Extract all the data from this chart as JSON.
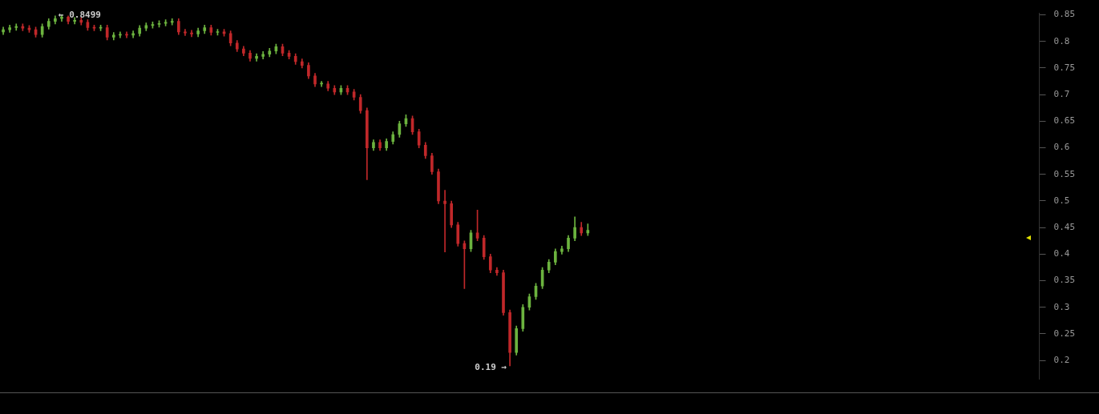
{
  "chart_data": {
    "type": "candlestick",
    "categories": [
      null,
      null,
      null,
      null,
      null,
      null,
      null,
      null,
      null,
      null,
      null,
      null,
      null,
      null,
      null,
      null,
      null,
      null,
      null,
      null,
      null,
      null,
      null,
      null,
      null,
      null,
      null,
      null,
      null,
      null,
      null,
      null,
      null,
      null,
      null,
      null,
      null,
      null,
      null,
      null,
      null,
      null,
      null,
      null,
      null,
      null,
      null,
      null,
      null,
      null,
      null,
      null,
      null,
      null,
      null,
      null,
      null,
      null,
      null,
      null,
      null,
      null,
      null,
      null,
      null,
      null,
      null,
      null,
      null,
      null,
      null,
      null,
      null,
      null,
      null,
      null,
      null,
      null,
      null,
      null,
      null,
      null,
      null,
      null,
      null,
      null,
      null,
      null,
      null,
      null,
      null,
      null,
      null,
      null,
      null,
      null,
      null,
      null,
      null,
      null,
      null,
      null,
      null,
      null,
      null,
      null,
      null,
      null,
      null,
      null,
      null,
      null,
      null,
      null,
      null,
      null,
      null,
      null,
      null,
      null,
      null,
      null,
      null,
      null,
      null,
      null,
      null,
      null,
      null,
      null,
      null,
      null,
      null,
      null,
      null,
      null,
      null,
      null,
      null,
      null,
      null,
      null,
      null,
      null,
      null,
      null,
      null,
      null,
      null,
      null,
      null,
      null,
      null,
      null,
      null,
      null,
      null,
      null,
      null,
      null
    ],
    "ohlc": [
      [
        0.818,
        0.827,
        0.813,
        0.822
      ],
      [
        0.822,
        0.831,
        0.817,
        0.826
      ],
      [
        0.826,
        0.833,
        0.821,
        0.828
      ],
      [
        0.828,
        0.833,
        0.82,
        0.825
      ],
      [
        0.825,
        0.83,
        0.817,
        0.822
      ],
      [
        0.822,
        0.827,
        0.808,
        0.813
      ],
      [
        0.813,
        0.833,
        0.808,
        0.828
      ],
      [
        0.828,
        0.843,
        0.823,
        0.838
      ],
      [
        0.838,
        0.848,
        0.833,
        0.843
      ],
      [
        0.843,
        0.8499,
        0.838,
        0.846
      ],
      [
        0.846,
        0.848,
        0.833,
        0.838
      ],
      [
        0.838,
        0.845,
        0.833,
        0.84
      ],
      [
        0.84,
        0.845,
        0.831,
        0.836
      ],
      [
        0.836,
        0.841,
        0.821,
        0.826
      ],
      [
        0.826,
        0.831,
        0.82,
        0.825
      ],
      [
        0.825,
        0.831,
        0.82,
        0.826
      ],
      [
        0.826,
        0.831,
        0.803,
        0.808
      ],
      [
        0.808,
        0.817,
        0.803,
        0.812
      ],
      [
        0.812,
        0.818,
        0.807,
        0.813
      ],
      [
        0.813,
        0.818,
        0.807,
        0.812
      ],
      [
        0.812,
        0.82,
        0.807,
        0.815
      ],
      [
        0.815,
        0.83,
        0.81,
        0.825
      ],
      [
        0.825,
        0.835,
        0.82,
        0.83
      ],
      [
        0.83,
        0.837,
        0.825,
        0.832
      ],
      [
        0.832,
        0.839,
        0.827,
        0.834
      ],
      [
        0.834,
        0.841,
        0.829,
        0.836
      ],
      [
        0.836,
        0.843,
        0.831,
        0.838
      ],
      [
        0.838,
        0.843,
        0.813,
        0.818
      ],
      [
        0.818,
        0.823,
        0.811,
        0.816
      ],
      [
        0.816,
        0.821,
        0.809,
        0.814
      ],
      [
        0.814,
        0.825,
        0.809,
        0.82
      ],
      [
        0.82,
        0.831,
        0.815,
        0.826
      ],
      [
        0.826,
        0.831,
        0.812,
        0.817
      ],
      [
        0.817,
        0.823,
        0.812,
        0.818
      ],
      [
        0.818,
        0.823,
        0.81,
        0.815
      ],
      [
        0.815,
        0.82,
        0.792,
        0.797
      ],
      [
        0.797,
        0.802,
        0.781,
        0.786
      ],
      [
        0.786,
        0.791,
        0.773,
        0.778
      ],
      [
        0.778,
        0.783,
        0.763,
        0.768
      ],
      [
        0.768,
        0.777,
        0.763,
        0.772
      ],
      [
        0.772,
        0.781,
        0.767,
        0.776
      ],
      [
        0.776,
        0.787,
        0.771,
        0.782
      ],
      [
        0.782,
        0.795,
        0.777,
        0.79
      ],
      [
        0.79,
        0.795,
        0.773,
        0.778
      ],
      [
        0.778,
        0.783,
        0.767,
        0.772
      ],
      [
        0.772,
        0.777,
        0.757,
        0.762
      ],
      [
        0.762,
        0.767,
        0.75,
        0.755
      ],
      [
        0.755,
        0.76,
        0.73,
        0.735
      ],
      [
        0.735,
        0.74,
        0.715,
        0.72
      ],
      [
        0.72,
        0.725,
        0.715,
        0.72
      ],
      [
        0.72,
        0.725,
        0.707,
        0.712
      ],
      [
        0.712,
        0.717,
        0.7,
        0.705
      ],
      [
        0.705,
        0.717,
        0.7,
        0.712
      ],
      [
        0.712,
        0.717,
        0.7,
        0.705
      ],
      [
        0.705,
        0.71,
        0.69,
        0.695
      ],
      [
        0.695,
        0.7,
        0.665,
        0.67
      ],
      [
        0.67,
        0.675,
        0.54,
        0.6
      ],
      [
        0.6,
        0.615,
        0.595,
        0.61
      ],
      [
        0.61,
        0.615,
        0.595,
        0.6
      ],
      [
        0.6,
        0.617,
        0.595,
        0.612
      ],
      [
        0.612,
        0.63,
        0.607,
        0.625
      ],
      [
        0.625,
        0.65,
        0.62,
        0.645
      ],
      [
        0.645,
        0.662,
        0.64,
        0.655
      ],
      [
        0.655,
        0.66,
        0.625,
        0.63
      ],
      [
        0.63,
        0.635,
        0.6,
        0.605
      ],
      [
        0.605,
        0.61,
        0.58,
        0.585
      ],
      [
        0.585,
        0.59,
        0.55,
        0.555
      ],
      [
        0.555,
        0.56,
        0.495,
        0.5
      ],
      [
        0.5,
        0.52,
        0.404,
        0.495
      ],
      [
        0.495,
        0.5,
        0.45,
        0.455
      ],
      [
        0.455,
        0.46,
        0.415,
        0.42
      ],
      [
        0.42,
        0.425,
        0.335,
        0.41
      ],
      [
        0.41,
        0.445,
        0.405,
        0.44
      ],
      [
        0.44,
        0.483,
        0.425,
        0.43
      ],
      [
        0.43,
        0.435,
        0.39,
        0.395
      ],
      [
        0.395,
        0.4,
        0.365,
        0.37
      ],
      [
        0.37,
        0.375,
        0.36,
        0.365
      ],
      [
        0.365,
        0.37,
        0.285,
        0.29
      ],
      [
        0.29,
        0.295,
        0.19,
        0.215
      ],
      [
        0.215,
        0.265,
        0.21,
        0.26
      ],
      [
        0.26,
        0.305,
        0.255,
        0.3
      ],
      [
        0.3,
        0.325,
        0.295,
        0.32
      ],
      [
        0.32,
        0.345,
        0.315,
        0.34
      ],
      [
        0.34,
        0.375,
        0.335,
        0.37
      ],
      [
        0.37,
        0.39,
        0.365,
        0.385
      ],
      [
        0.385,
        0.41,
        0.38,
        0.405
      ],
      [
        0.405,
        0.415,
        0.4,
        0.41
      ],
      [
        0.41,
        0.435,
        0.405,
        0.43
      ],
      [
        0.43,
        0.47,
        0.425,
        0.45
      ],
      [
        0.45,
        0.46,
        0.435,
        0.44
      ],
      [
        0.44,
        0.457,
        0.435,
        0.445
      ],
      null,
      null,
      null,
      null,
      null,
      null,
      null,
      null,
      null,
      null,
      null,
      null,
      null,
      null,
      null,
      null,
      null,
      null,
      null,
      null,
      null,
      null,
      null,
      null,
      null,
      null,
      null,
      null,
      null,
      null,
      null,
      null,
      null,
      null,
      null,
      null,
      null,
      null,
      null,
      null,
      null,
      null,
      null,
      null,
      null,
      null,
      null,
      null,
      null,
      null,
      null,
      null,
      null,
      null,
      null,
      null,
      null,
      null,
      null,
      null,
      null,
      null,
      null,
      null,
      null,
      null,
      null,
      null,
      null
    ],
    "ylim": [
      0.165,
      0.853
    ],
    "yticks": [
      0.85,
      0.8,
      0.75,
      0.7,
      0.65,
      0.6,
      0.55,
      0.5,
      0.45,
      0.4,
      0.35,
      0.3,
      0.25,
      0.2
    ],
    "annotations": [
      {
        "text": "← 0.8499",
        "y": 0.8499
      },
      "0.19 →"
    ],
    "grid": false,
    "legend": false
  }
}
